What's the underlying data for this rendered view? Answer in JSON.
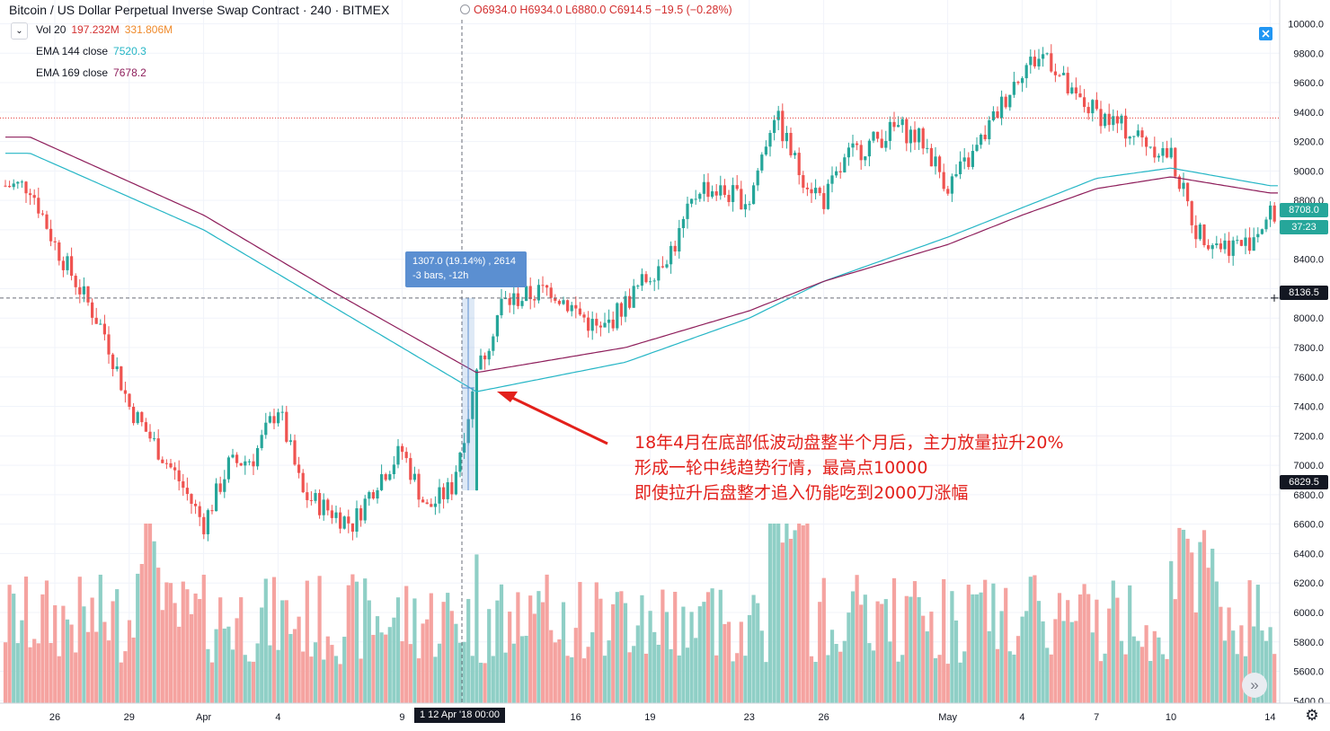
{
  "header": {
    "symbol_title": "Bitcoin / US Dollar Perpetual Inverse Swap Contract · 240 · BITMEX",
    "ohlc": "O6934.0 H6934.0 L6880.0 C6914.5 −19.5 (−0.28%)"
  },
  "indicators": [
    {
      "label": "Vol 20",
      "v1": "197.232M",
      "v2": "331.806M",
      "c1": "#d32f2f",
      "c2": "#ef8a2b"
    },
    {
      "label": "EMA 144 close",
      "v1": "7520.3",
      "v2": "",
      "c1": "#26b6c6",
      "c2": ""
    },
    {
      "label": "EMA 169 close",
      "v1": "7678.2",
      "v2": "",
      "c1": "#8e1e5b",
      "c2": ""
    }
  ],
  "measure_tooltip": {
    "line1": "1307.0 (19.14%) , 2614",
    "line2": "-3 bars, -12h"
  },
  "annotation": {
    "line1": "18年4月在底部低波动盘整半个月后，主力放量拉升20%",
    "line2": "形成一轮中线趋势行情，最高点10000",
    "line3": "即使拉升后盘整才追入仍能吃到2000刀涨幅"
  },
  "price_axis": {
    "ticks": [
      "10000.0",
      "9800.0",
      "9600.0",
      "9400.0",
      "9200.0",
      "9000.0",
      "8800.0",
      "8600.0",
      "8400.0",
      "8200.0",
      "8000.0",
      "7800.0",
      "7600.0",
      "7400.0",
      "7200.0",
      "7000.0",
      "6800.0",
      "6600.0",
      "6400.0",
      "6200.0",
      "6000.0",
      "5800.0",
      "5600.0",
      "5400.0"
    ],
    "last_price": "8708.0",
    "countdown": "37:23",
    "crosshair_price": "8136.5",
    "marker_price": "6829.5"
  },
  "time_axis": {
    "ticks": [
      "26",
      "29",
      "Apr",
      "4",
      "9",
      "16",
      "19",
      "23",
      "26",
      "May",
      "4",
      "7",
      "10",
      "14"
    ],
    "crosshair_label": "1  12 Apr '18  00:00"
  },
  "icons": {
    "scroll_right": "double-chevron-right-icon",
    "settings": "gear-icon",
    "flag": "flag-icon",
    "collapse": "chevron-down-icon"
  },
  "chart_data": {
    "type": "candlestick",
    "symbol": "Bitcoin / US Dollar Perpetual Inverse Swap Contract",
    "interval": "240",
    "exchange": "BITMEX",
    "x_start": "Mar 25 '18",
    "x_end": "May 14 '18",
    "ylim": [
      5300,
      10100
    ],
    "volume_axis_range_M": [
      0,
      600
    ],
    "close_path_keypoints": [
      [
        "Mar 25",
        8900
      ],
      [
        "Mar 26",
        8500
      ],
      [
        "Mar 28",
        7900
      ],
      [
        "Mar 29",
        7400
      ],
      [
        "Mar 31",
        6900
      ],
      [
        "Apr 1",
        6600
      ],
      [
        "Apr 2",
        7000
      ],
      [
        "Apr 3",
        7050
      ],
      [
        "Apr 4",
        7400
      ],
      [
        "Apr 5",
        6800
      ],
      [
        "Apr 7",
        6600
      ],
      [
        "Apr 8",
        6900
      ],
      [
        "Apr 9",
        7100
      ],
      [
        "Apr 10",
        6700
      ],
      [
        "Apr 11",
        6850
      ],
      [
        "Apr 12",
        7600
      ],
      [
        "Apr 13",
        8100
      ],
      [
        "Apr 15",
        8200
      ],
      [
        "Apr 17",
        7900
      ],
      [
        "Apr 18",
        8100
      ],
      [
        "Apr 20",
        8500
      ],
      [
        "Apr 21",
        8900
      ],
      [
        "Apr 23",
        8800
      ],
      [
        "Apr 24",
        9400
      ],
      [
        "Apr 25",
        9000
      ],
      [
        "Apr 26",
        8800
      ],
      [
        "Apr 27",
        9100
      ],
      [
        "Apr 29",
        9300
      ],
      [
        "Apr 30",
        9200
      ],
      [
        "May 1",
        8900
      ],
      [
        "May 2",
        9100
      ],
      [
        "May 3",
        9400
      ],
      [
        "May 4",
        9700
      ],
      [
        "May 5",
        9800
      ],
      [
        "May 6",
        9500
      ],
      [
        "May 8",
        9300
      ],
      [
        "May 9",
        9200
      ],
      [
        "May 10",
        9100
      ],
      [
        "May 11",
        8600
      ],
      [
        "May 12",
        8500
      ],
      [
        "May 13",
        8500
      ],
      [
        "May 14",
        8700
      ]
    ],
    "ema144_keypoints": [
      [
        "Mar 25",
        9120
      ],
      [
        "Apr 1",
        8600
      ],
      [
        "Apr 6",
        8100
      ],
      [
        "Apr 12",
        7500
      ],
      [
        "Apr 18",
        7700
      ],
      [
        "Apr 23",
        8000
      ],
      [
        "Apr 26",
        8250
      ],
      [
        "May 1",
        8550
      ],
      [
        "May 4",
        8750
      ],
      [
        "May 7",
        8950
      ],
      [
        "May 10",
        9020
      ],
      [
        "May 14",
        8900
      ]
    ],
    "ema169_keypoints": [
      [
        "Mar 25",
        9230
      ],
      [
        "Apr 1",
        8700
      ],
      [
        "Apr 6",
        8200
      ],
      [
        "Apr 12",
        7630
      ],
      [
        "Apr 18",
        7800
      ],
      [
        "Apr 23",
        8050
      ],
      [
        "Apr 26",
        8250
      ],
      [
        "May 1",
        8500
      ],
      [
        "May 4",
        8700
      ],
      [
        "May 7",
        8880
      ],
      [
        "May 10",
        8960
      ],
      [
        "May 14",
        8850
      ]
    ],
    "reference_lines": {
      "red_dotted": 9360,
      "crosshair": 8136.5
    },
    "measure": {
      "change": 1307.0,
      "percent": 19.14,
      "ticks": 2614,
      "bars": -3,
      "time": "-12h"
    },
    "legend": {
      "Vol 20": [
        "197.232M",
        "331.806M"
      ],
      "EMA 144 close": "7520.3",
      "EMA 169 close": "7678.2"
    },
    "colors": {
      "up": "#26a69a",
      "down": "#ef5350",
      "vol_up": "#8fcfc6",
      "vol_down": "#f5a3a0",
      "ema144": "#26b6c6",
      "ema169": "#8e1e5b",
      "annotation": "#e3201b"
    }
  }
}
